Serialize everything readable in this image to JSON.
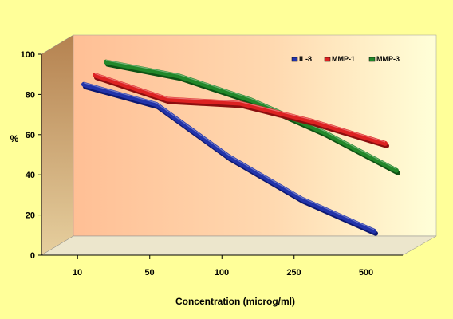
{
  "chart_data": {
    "type": "line",
    "categories": [
      "10",
      "50",
      "100",
      "250",
      "500"
    ],
    "series": [
      {
        "name": "IL-8",
        "values": [
          85,
          75,
          49,
          28,
          12
        ],
        "color": "#2233aa"
      },
      {
        "name": "MMP-1",
        "values": [
          88,
          76,
          74,
          65,
          54
        ],
        "color": "#dd2222"
      },
      {
        "name": "MMP-3",
        "values": [
          93,
          86,
          74,
          58,
          39
        ],
        "color": "#22882a"
      }
    ],
    "title": "",
    "xlabel": "Concentration (microg/ml)",
    "ylabel": "%",
    "ylim": [
      0,
      100
    ],
    "yticks": [
      "0",
      "20",
      "40",
      "60",
      "80",
      "100"
    ],
    "legend": "top-right",
    "grid": false,
    "three_d": true,
    "colors": {
      "background": "#ffff99",
      "plot_wall_left": "#ffc9a0",
      "plot_wall_right": "#ffffcc",
      "side_wall": "#c9a06a",
      "floor": "#e8e2c8"
    }
  }
}
